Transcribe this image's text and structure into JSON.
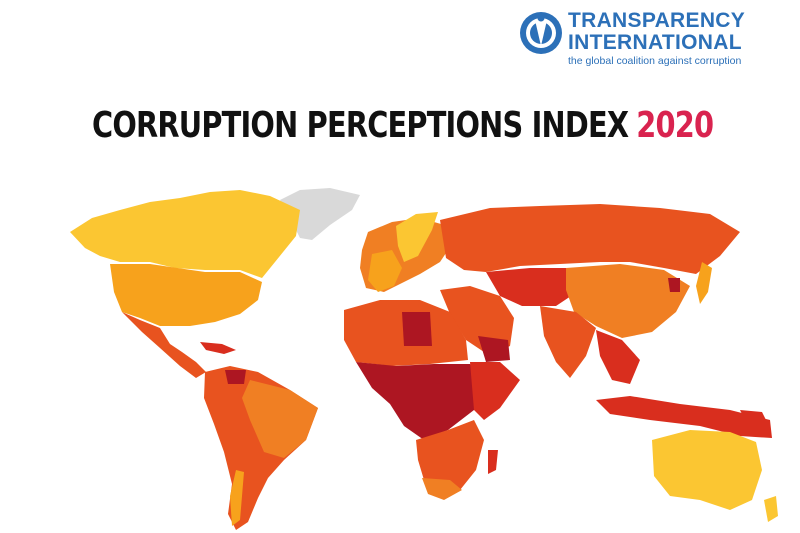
{
  "logo": {
    "line1": "TRANSPARENCY",
    "line2": "INTERNATIONAL",
    "tagline": "the global coalition against corruption",
    "color": "#2c70b8"
  },
  "title": {
    "main": "CORRUPTION PERCEPTIONS INDEX",
    "year": "2020",
    "year_color": "#d9234f"
  },
  "map": {
    "legend_colors": {
      "very_clean": "#fbc632",
      "clean": "#f7a21c",
      "moderate": "#f07f23",
      "corrupt": "#e8531f",
      "very_corrupt": "#d92e1e",
      "highly_corrupt": "#ad1622",
      "no_data": "#d9d9d9"
    }
  }
}
